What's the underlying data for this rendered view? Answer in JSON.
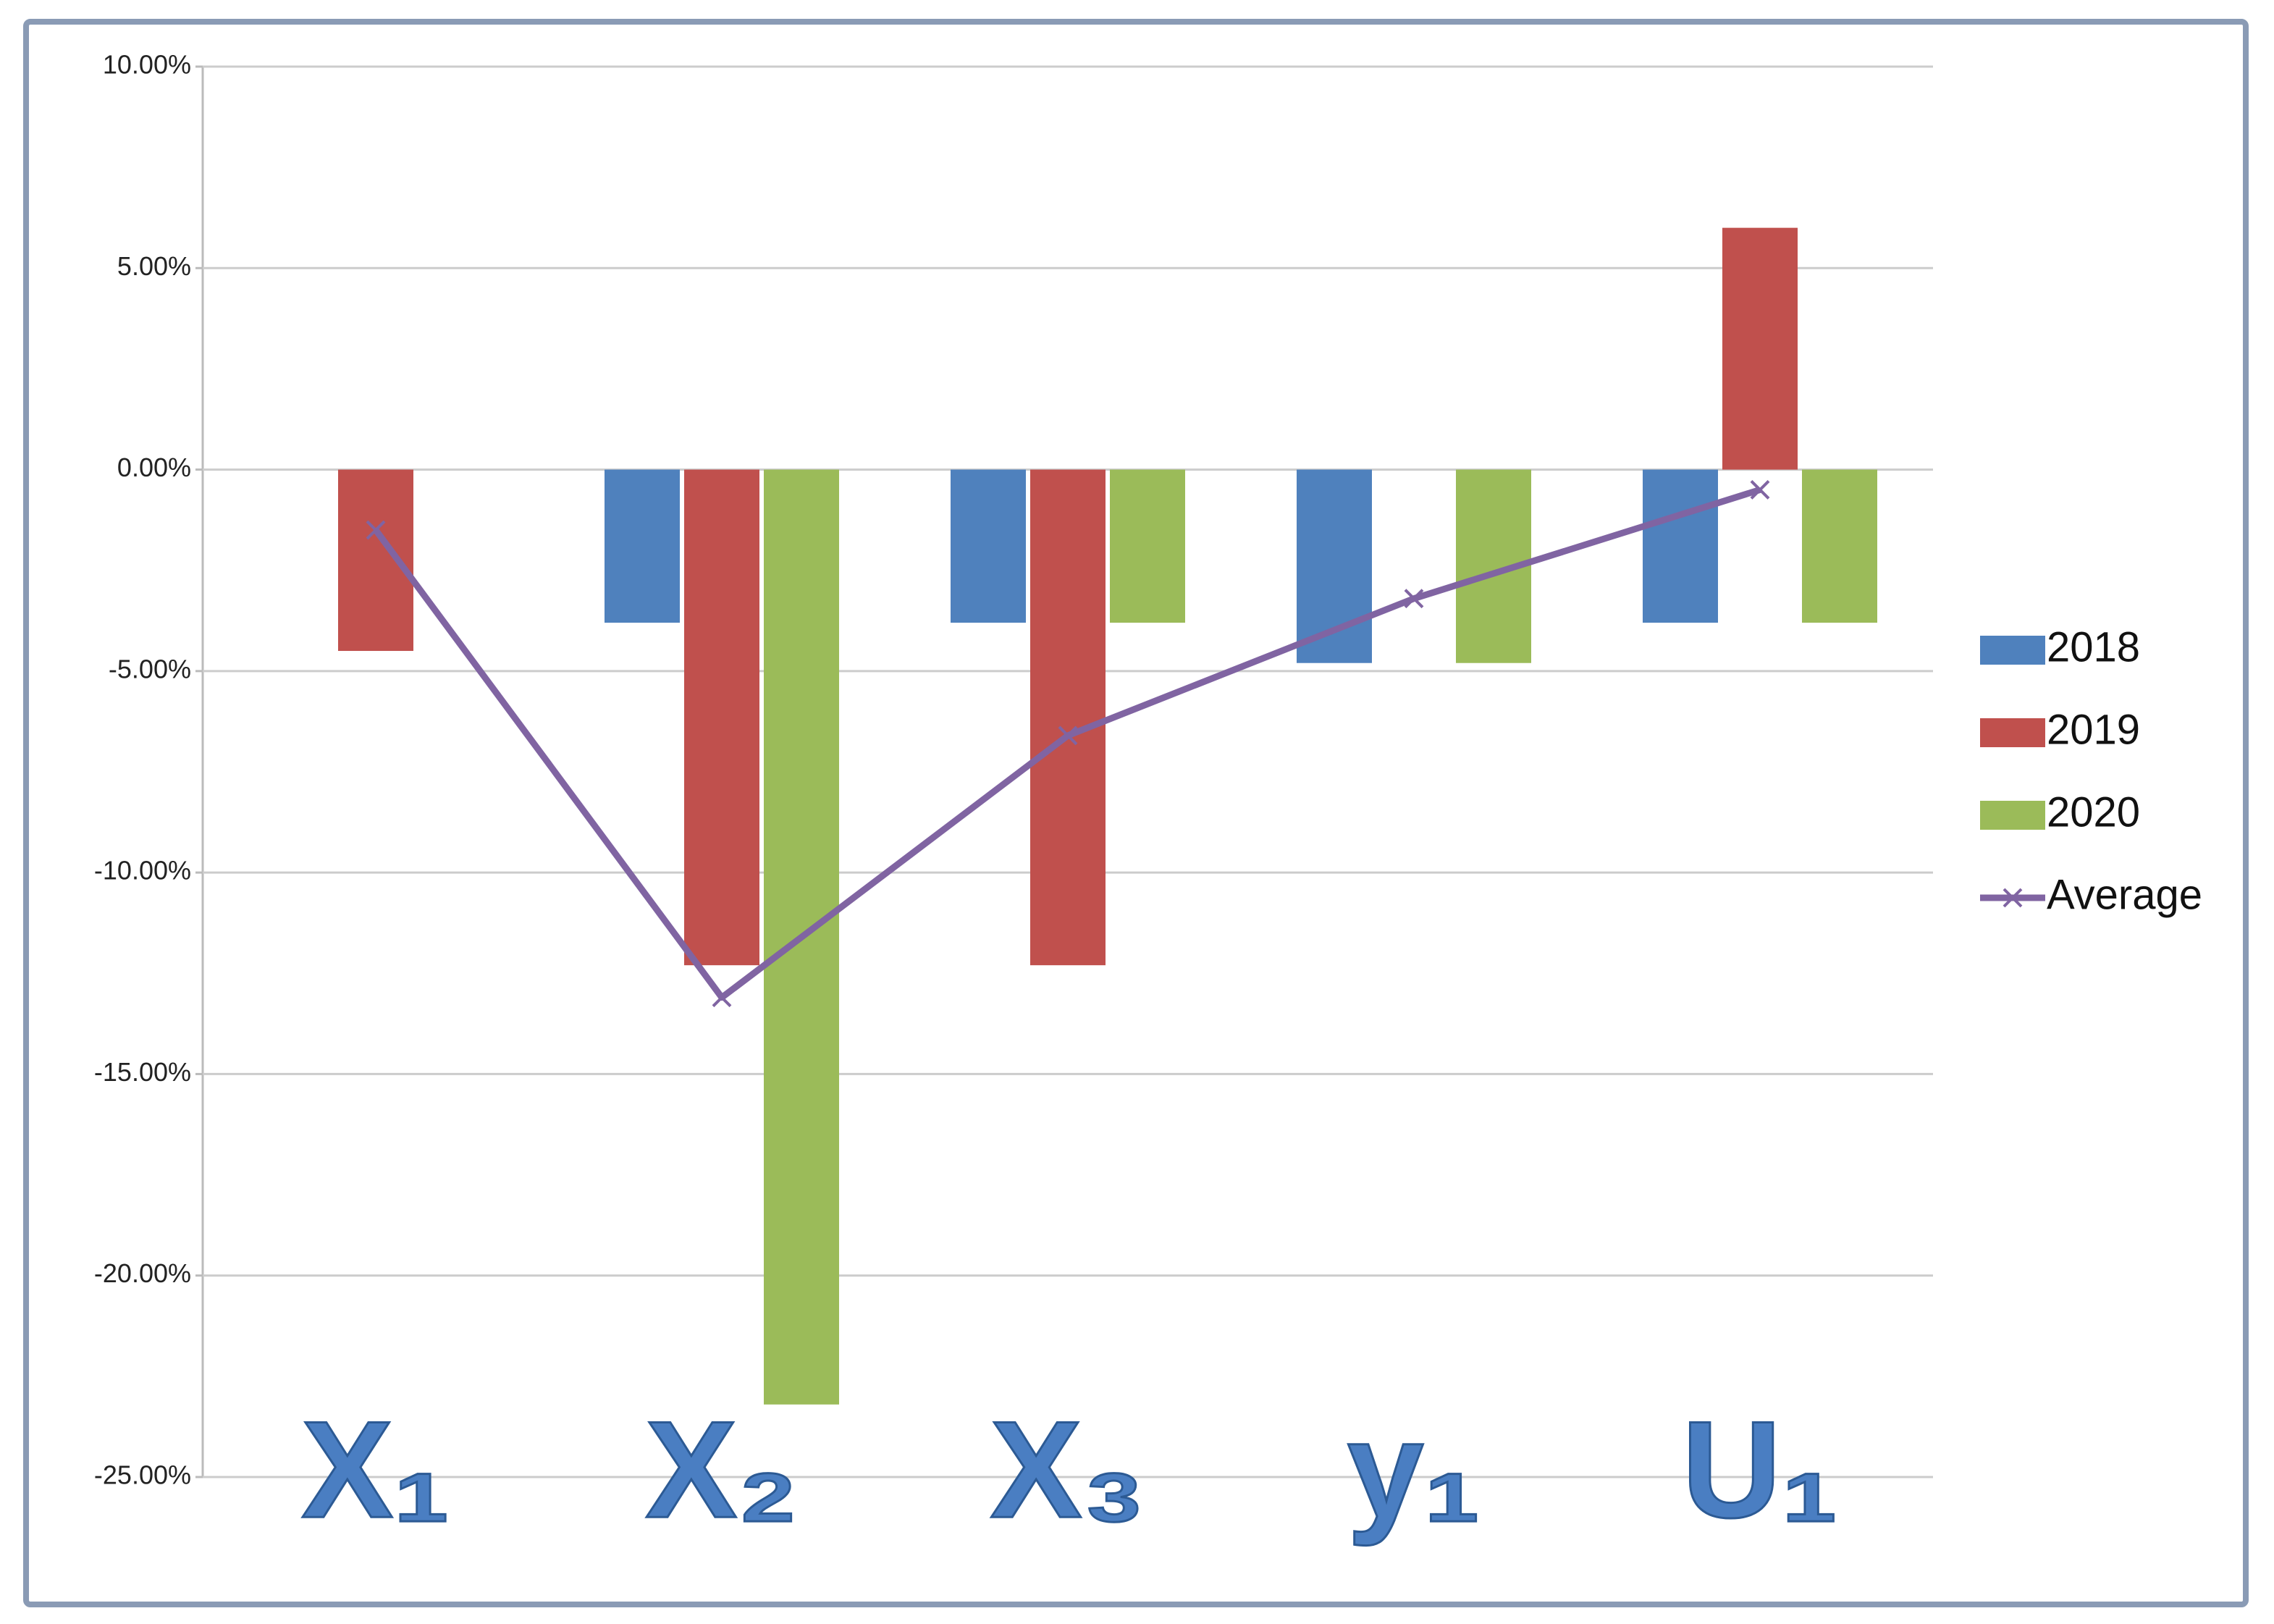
{
  "chart_data": {
    "type": "bar",
    "categories": [
      "X₁",
      "X₂",
      "X₃",
      "y₁",
      "U₁"
    ],
    "series": [
      {
        "name": "2018",
        "color": "#4f81bd",
        "values": [
          0,
          -3.8,
          -3.8,
          -4.8,
          -3.8
        ]
      },
      {
        "name": "2019",
        "color": "#c0504d",
        "values": [
          -4.5,
          -12.3,
          -12.3,
          0,
          6.0
        ]
      },
      {
        "name": "2020",
        "color": "#9bbb59",
        "values": [
          0,
          -23.2,
          -3.8,
          -4.8,
          -3.8
        ]
      },
      {
        "name": "Average",
        "type": "line",
        "color": "#8064a2",
        "values": [
          -1.5,
          -13.1,
          -6.6,
          -3.2,
          -0.5
        ]
      }
    ],
    "ylim": [
      -25,
      10
    ],
    "yticks": [
      {
        "value": -25,
        "label": "-25.00%"
      },
      {
        "value": -20,
        "label": "-20.00%"
      },
      {
        "value": -15,
        "label": "-15.00%"
      },
      {
        "value": -10,
        "label": "-10.00%"
      },
      {
        "value": -5,
        "label": "-5.00%"
      },
      {
        "value": 0,
        "label": "0.00%"
      },
      {
        "value": 5,
        "label": "5.00%"
      },
      {
        "value": 10,
        "label": "10.00%"
      }
    ],
    "grid": true,
    "legend": "right"
  }
}
